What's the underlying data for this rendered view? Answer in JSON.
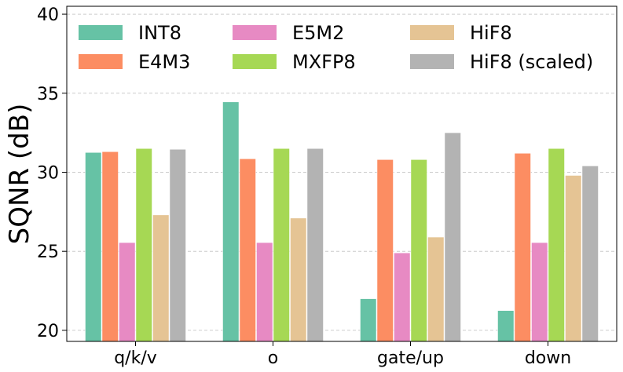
{
  "chart_data": {
    "type": "bar",
    "title": "",
    "xlabel": "",
    "ylabel": "SQNR (dB)",
    "ylim": [
      19.3,
      40.5
    ],
    "yticks": [
      20,
      25,
      30,
      35,
      40
    ],
    "grid": "y-dashed",
    "legend": "top, 3 columns",
    "categories": [
      "q/k/v",
      "o",
      "gate/up",
      "down"
    ],
    "series": [
      {
        "name": "INT8",
        "color": "#66c2a5",
        "values": [
          31.25,
          34.45,
          22.0,
          21.25
        ]
      },
      {
        "name": "E4M3",
        "color": "#fc8d62",
        "values": [
          31.3,
          30.85,
          30.8,
          31.2
        ]
      },
      {
        "name": "E5M2",
        "color": "#e78ac3",
        "values": [
          25.55,
          25.55,
          24.9,
          25.55
        ]
      },
      {
        "name": "MXFP8",
        "color": "#a6d854",
        "values": [
          31.5,
          31.5,
          30.8,
          31.5
        ]
      },
      {
        "name": "HiF8",
        "color": "#e5c494",
        "values": [
          27.3,
          27.1,
          25.9,
          29.8
        ]
      },
      {
        "name": "HiF8 (scaled)",
        "color": "#b3b3b3",
        "values": [
          31.45,
          31.5,
          32.5,
          30.4
        ]
      }
    ]
  }
}
